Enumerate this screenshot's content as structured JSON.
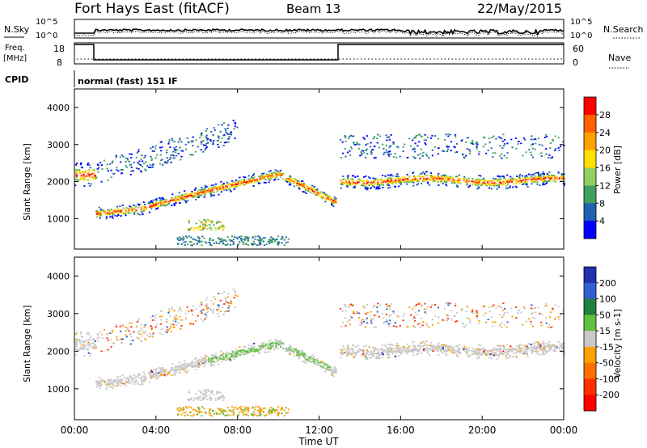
{
  "header": {
    "station": "Fort Hays East (fitACF)",
    "beam": "Beam 13",
    "date": "22/May/2015"
  },
  "panels": {
    "nsky_label": "N.Sky",
    "nsearch_label": "N.Search",
    "freq_label": "Freq.",
    "freq_unit": "[MHz]",
    "nave_label": "Nave",
    "cpid_label": "CPID",
    "cpid_text": "normal (fast) 151 IF",
    "noise_ticks": [
      "10^5",
      "10^0"
    ],
    "freq_ticks": [
      "18",
      "8"
    ],
    "nave_ticks": [
      "60",
      "0"
    ]
  },
  "chart_data": [
    {
      "type": "heatmap",
      "title": "",
      "xlabel": "",
      "ylabel": "Slant Range [km]",
      "colorbar_label": "Power [dB]",
      "colorbar_ticks": [
        "28",
        "24",
        "20",
        "16",
        "12",
        "8",
        "4"
      ],
      "colorbar_colors": [
        "#ff0000",
        "#ff6000",
        "#ffa000",
        "#ffe000",
        "#90d060",
        "#40a060",
        "#2060b0",
        "#0000ff"
      ],
      "x_ticks": [
        "00:00",
        "04:00",
        "08:00",
        "12:00",
        "16:00",
        "20:00",
        "00:00"
      ],
      "y_ticks": [
        "1000",
        "2000",
        "3000",
        "4000"
      ],
      "xlim": [
        0,
        24
      ],
      "ylim": [
        180,
        4500
      ]
    },
    {
      "type": "heatmap",
      "title": "",
      "xlabel": "Time UT",
      "ylabel": "Slant Range [km]",
      "colorbar_label": "Velocity [m s-1]",
      "colorbar_ticks": [
        "200",
        "100",
        "50",
        "15",
        "-15",
        "-50",
        "-100",
        "-200"
      ],
      "colorbar_colors": [
        "#2030b0",
        "#3060d0",
        "#208040",
        "#60c040",
        "#c8c8c8",
        "#ffa000",
        "#ff7000",
        "#ff3000",
        "#ff0000"
      ],
      "x_ticks": [
        "00:00",
        "04:00",
        "08:00",
        "12:00",
        "16:00",
        "20:00",
        "00:00"
      ],
      "y_ticks": [
        "1000",
        "2000",
        "3000",
        "4000"
      ],
      "xlim": [
        0,
        24
      ],
      "ylim": [
        180,
        4500
      ]
    }
  ]
}
